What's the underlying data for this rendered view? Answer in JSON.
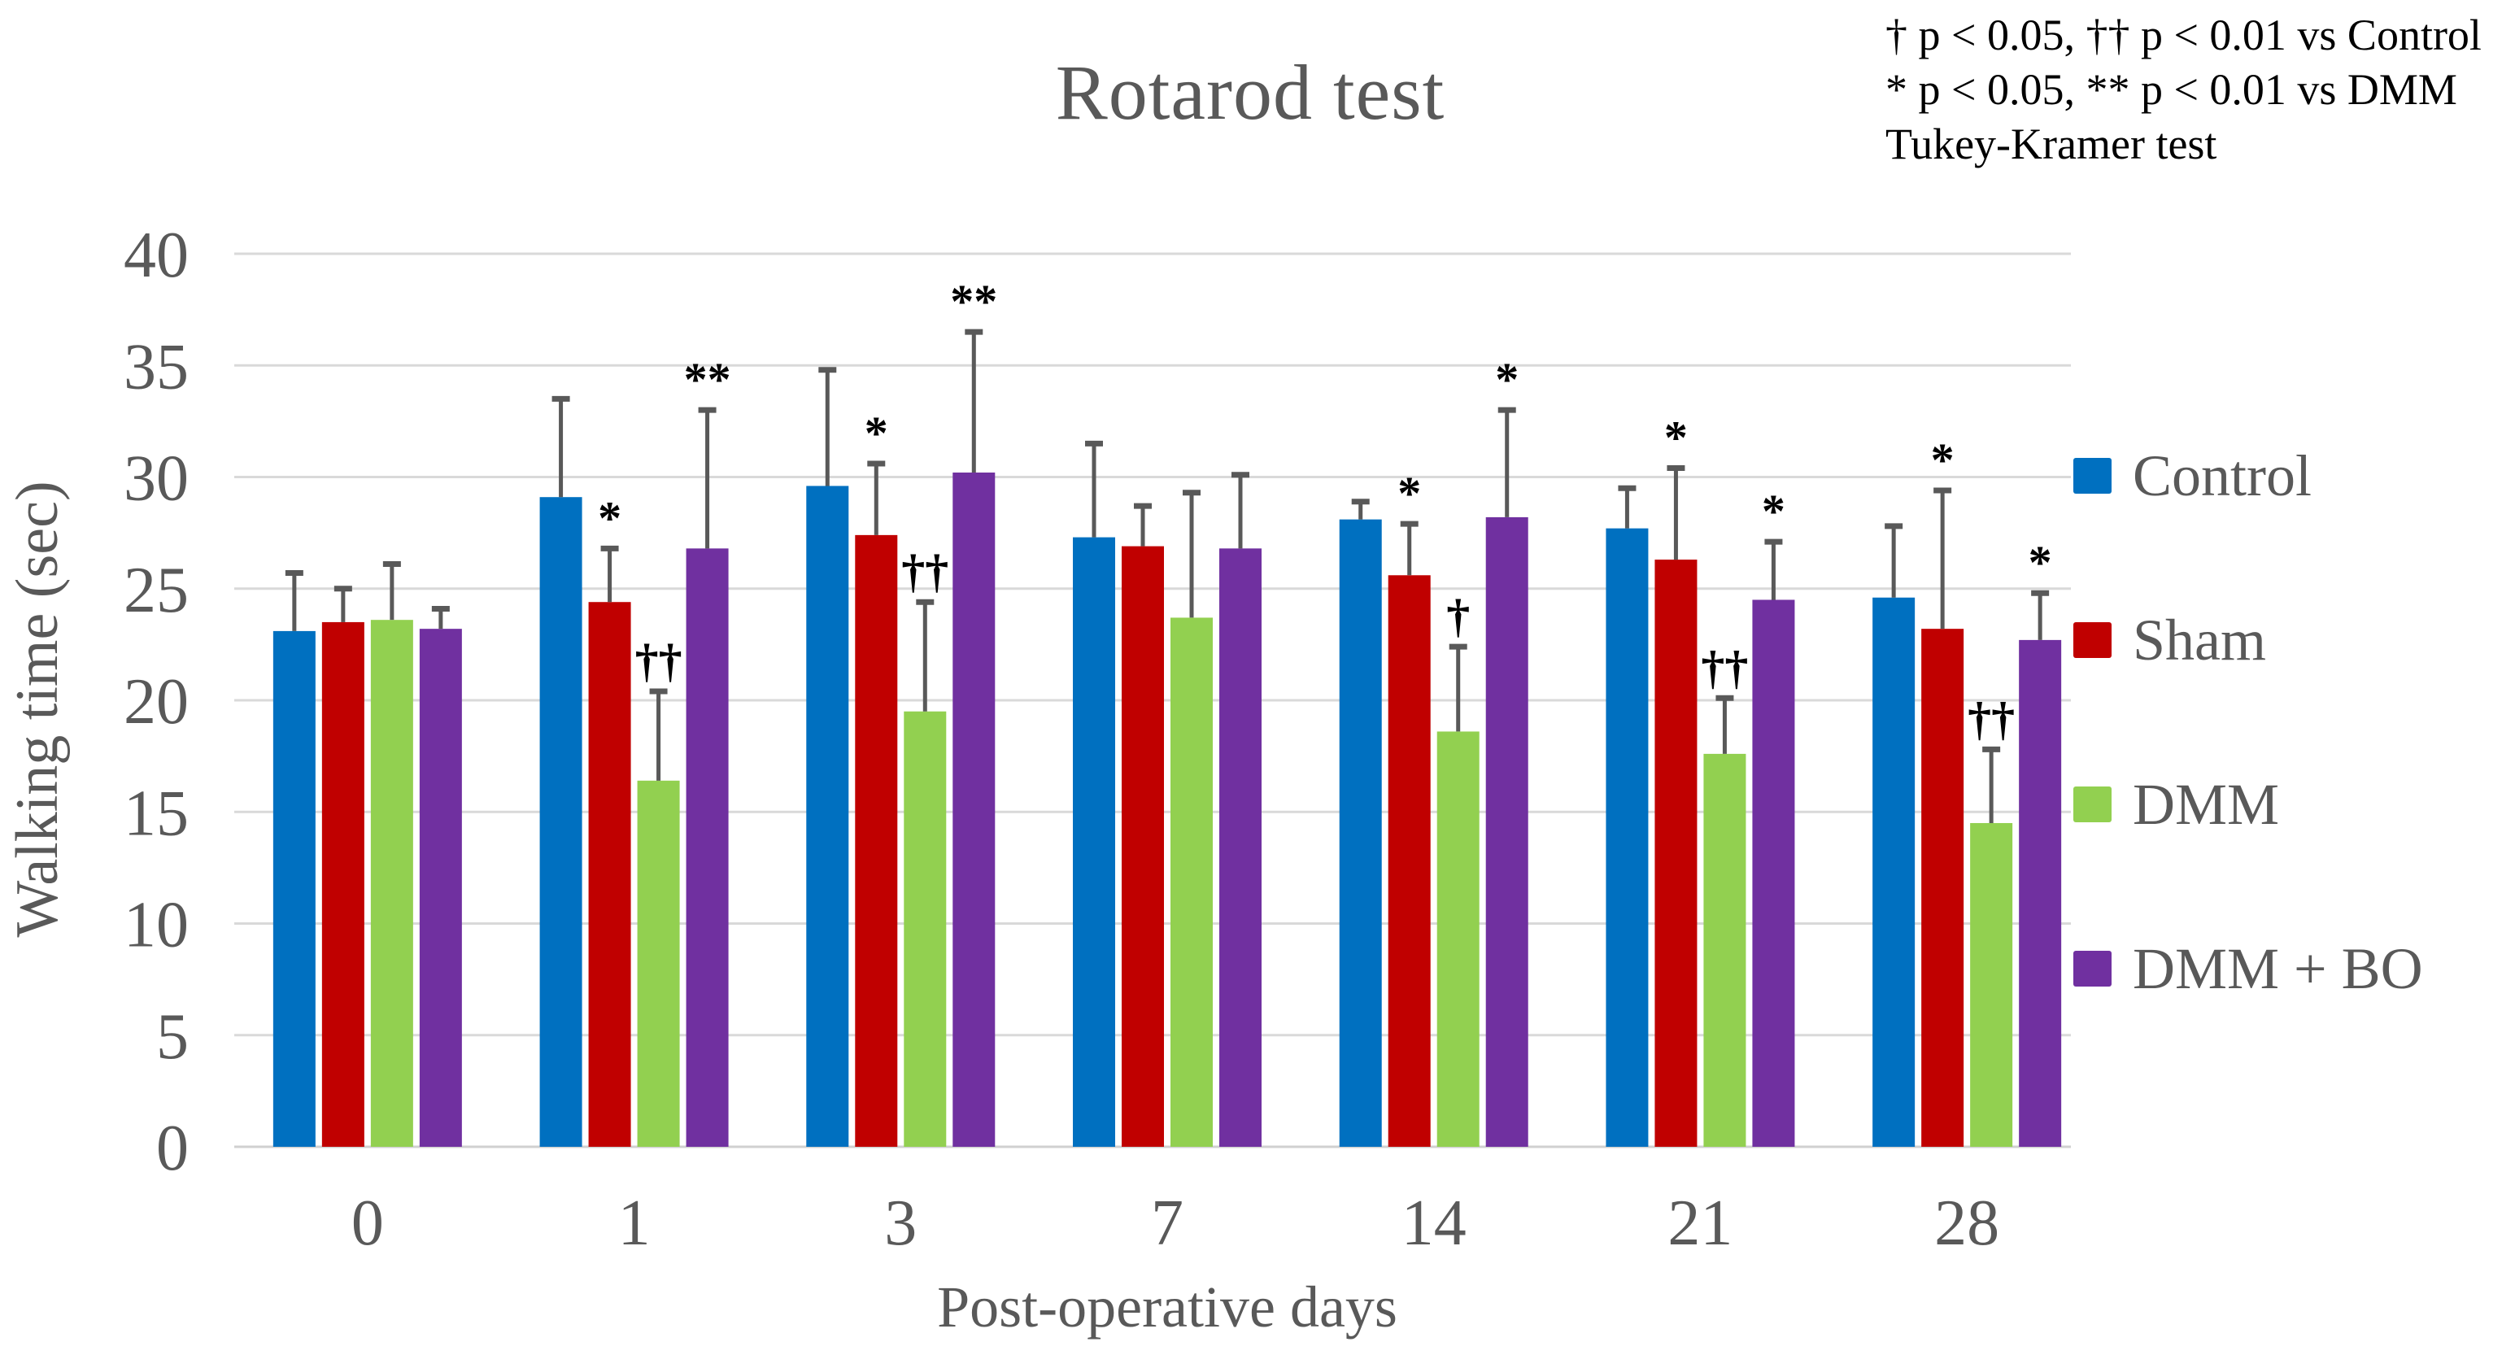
{
  "chart_data": {
    "type": "bar",
    "title": "Rotarod test",
    "xlabel": "Post-operative days",
    "ylabel": "Walking time (sec)",
    "categories": [
      "0",
      "1",
      "3",
      "7",
      "14",
      "21",
      "28"
    ],
    "ylim": [
      0,
      40
    ],
    "yticks": [
      0,
      5,
      10,
      15,
      20,
      25,
      30,
      35,
      40
    ],
    "grid": true,
    "legend_position": "right",
    "series": [
      {
        "name": "Control",
        "color": "#0070C0",
        "values": [
          23.1,
          29.1,
          29.6,
          27.3,
          28.1,
          27.7,
          24.6
        ],
        "errors_plus": [
          2.6,
          4.4,
          5.2,
          4.2,
          0.8,
          1.8,
          3.2
        ],
        "sig_marks": [
          "",
          "",
          "",
          "",
          "",
          "",
          ""
        ]
      },
      {
        "name": "Sham",
        "color": "#C00000",
        "values": [
          23.5,
          24.4,
          27.4,
          26.9,
          25.6,
          26.3,
          23.2
        ],
        "errors_plus": [
          1.5,
          2.4,
          3.2,
          1.8,
          2.3,
          4.1,
          6.2
        ],
        "sig_marks": [
          "",
          "*",
          "*",
          "",
          "*",
          "*",
          "*"
        ]
      },
      {
        "name": "DMM",
        "color": "#92D050",
        "values": [
          23.6,
          16.4,
          19.5,
          23.7,
          18.6,
          17.6,
          14.5
        ],
        "errors_plus": [
          2.5,
          4.0,
          4.9,
          5.6,
          3.8,
          2.5,
          3.3
        ],
        "sig_marks": [
          "",
          "††",
          "††",
          "",
          "†",
          "††",
          "††"
        ]
      },
      {
        "name": "DMM + BO",
        "color": "#7030A0",
        "values": [
          23.2,
          26.8,
          30.2,
          26.8,
          28.2,
          24.5,
          22.7
        ],
        "errors_plus": [
          0.9,
          6.2,
          6.3,
          3.3,
          4.8,
          2.6,
          2.1
        ],
        "sig_marks": [
          "",
          "**",
          "**",
          "",
          "*",
          "*",
          "*"
        ]
      }
    ],
    "annotation_lines": [
      "† p < 0.05, †† p < 0.01 vs Control",
      "* p < 0.05, ** p < 0.01 vs DMM",
      "Tukey-Kramer test"
    ],
    "statistical_test": "Tukey-Kramer test",
    "error_bar_color": "#595959",
    "gridline_color": "#D9D9D9",
    "axis_line_color": "#D0D0D0",
    "text_color": "#595959",
    "sig_mark_color": "#000000"
  }
}
